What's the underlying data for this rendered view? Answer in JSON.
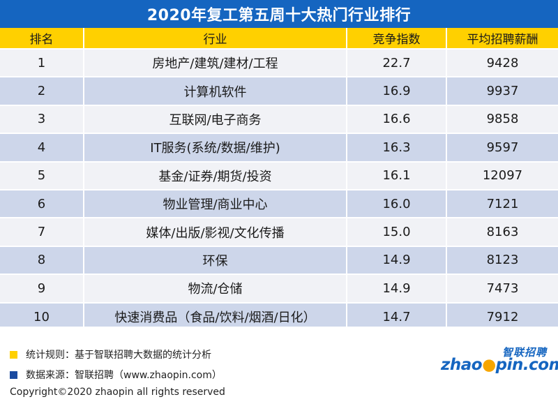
{
  "title": "2020年复工第五周十大热门行业排行",
  "table": {
    "headers": [
      "排名",
      "行业",
      "竞争指数",
      "平均招聘薪酬"
    ],
    "rows": [
      {
        "rank": "1",
        "industry": "房地产/建筑/建材/工程",
        "index": "22.7",
        "salary": "9428"
      },
      {
        "rank": "2",
        "industry": "计算机软件",
        "index": "16.9",
        "salary": "9937"
      },
      {
        "rank": "3",
        "industry": "互联网/电子商务",
        "index": "16.6",
        "salary": "9858"
      },
      {
        "rank": "4",
        "industry": "IT服务(系统/数据/维护)",
        "index": "16.3",
        "salary": "9597"
      },
      {
        "rank": "5",
        "industry": "基金/证券/期货/投资",
        "index": "16.1",
        "salary": "12097"
      },
      {
        "rank": "6",
        "industry": "物业管理/商业中心",
        "index": "16.0",
        "salary": "7121"
      },
      {
        "rank": "7",
        "industry": "媒体/出版/影视/文化传播",
        "index": "15.0",
        "salary": "8163"
      },
      {
        "rank": "8",
        "industry": "环保",
        "index": "14.9",
        "salary": "8123"
      },
      {
        "rank": "9",
        "industry": "物流/仓储",
        "index": "14.9",
        "salary": "7473"
      },
      {
        "rank": "10",
        "industry": "快速消费品（食品/饮料/烟酒/日化）",
        "index": "14.7",
        "salary": "7912"
      }
    ]
  },
  "notes": {
    "rule": "统计规则：基于智联招聘大数据的统计分析",
    "source": "数据来源：智联招聘（www.zhaopin.com）",
    "copyright": "Copyright©2020 zhaopin all rights reserved"
  },
  "logo": {
    "cn": "智联招聘",
    "en_part1": "zhao",
    "en_part2": "pin.com"
  },
  "colors": {
    "title_bg": "#1565c0",
    "header_bg": "#ffd000",
    "row_light": "#f1f2f6",
    "row_dark": "#cdd6ea",
    "note1_square": "#ffd000",
    "note2_square": "#1a4aa0"
  }
}
